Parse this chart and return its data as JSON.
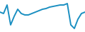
{
  "x": [
    0,
    1,
    2,
    3,
    4,
    5,
    6,
    7,
    8,
    9,
    10,
    11,
    12,
    13,
    14,
    15,
    16,
    17,
    18,
    19,
    20,
    21,
    22,
    23,
    24
  ],
  "y": [
    28,
    26,
    38,
    10,
    22,
    32,
    26,
    24,
    24,
    26,
    28,
    30,
    32,
    33,
    35,
    36,
    37,
    38,
    38,
    40,
    10,
    5,
    18,
    26,
    28
  ],
  "line_color": "#1a8fc1",
  "linewidth": 1.4,
  "background_color": "#ffffff"
}
